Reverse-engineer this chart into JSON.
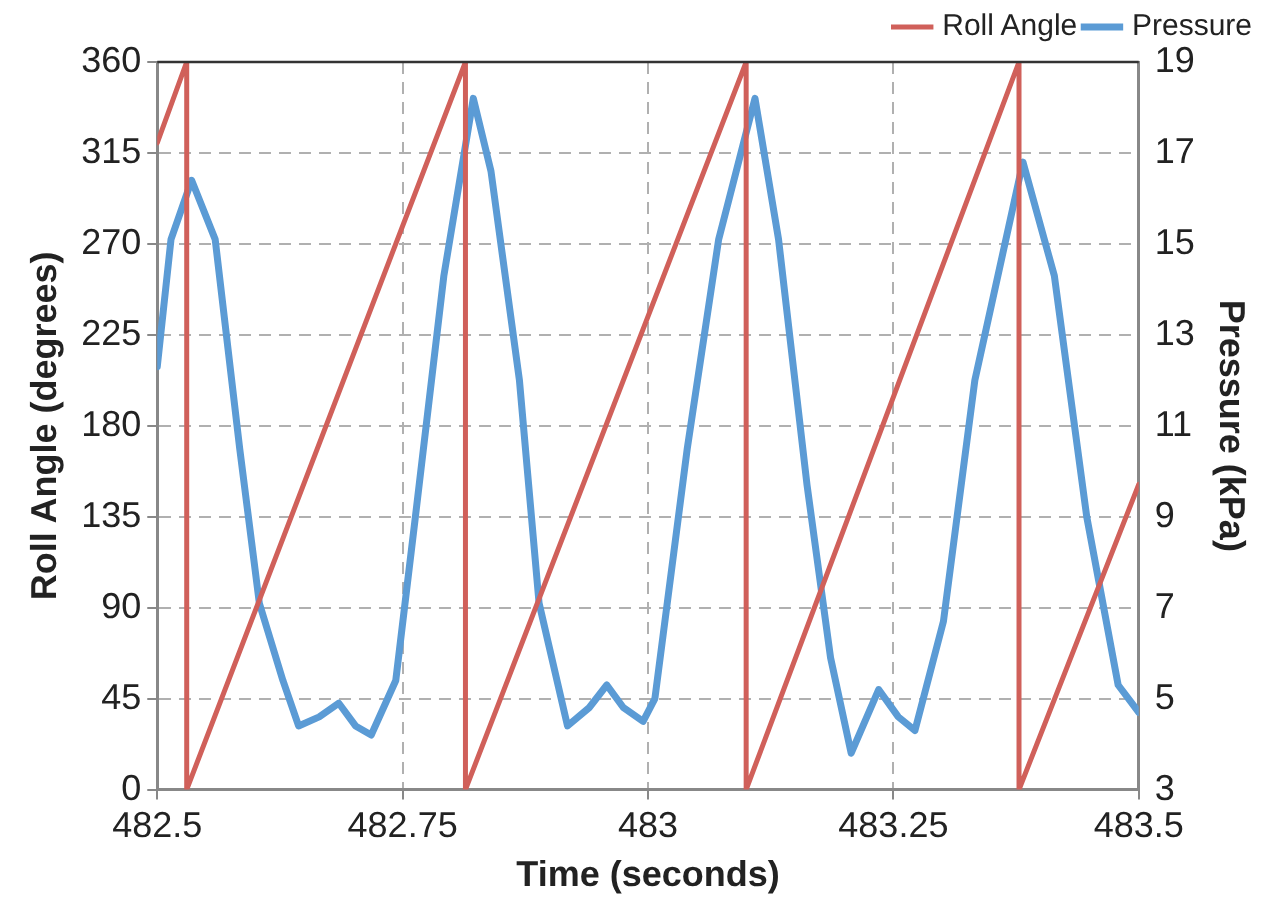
{
  "chart_data": {
    "type": "line",
    "xlabel": "Time (seconds)",
    "ylabel": "Roll Angle (degrees)",
    "y2label": "Pressure (kPa)",
    "xlim": [
      482.5,
      483.5
    ],
    "xticks": [
      482.5,
      482.75,
      483,
      483.25,
      483.5
    ],
    "ylim": [
      0,
      360
    ],
    "yticks": [
      0,
      45,
      90,
      135,
      180,
      225,
      270,
      315,
      360
    ],
    "y2lim": [
      3,
      19
    ],
    "y2ticks": [
      3,
      5,
      7,
      9,
      11,
      13,
      15,
      17,
      19
    ],
    "grid": true,
    "legend": "top right",
    "marker": "none",
    "line_style": "solid",
    "series": [
      {
        "name": "Roll Angle",
        "color": "#d0605a",
        "x": [
          482.5,
          482.53,
          482.53,
          482.814,
          482.814,
          483.1,
          483.1,
          483.378,
          483.378,
          483.5
        ],
        "values": [
          320,
          360,
          0,
          360,
          0,
          360,
          0,
          360,
          0,
          151
        ]
      },
      {
        "name": "Pressure",
        "color": "#5b9bd5",
        "axis": "y2",
        "x": [
          482.5,
          482.514,
          482.535,
          482.559,
          482.584,
          482.604,
          482.628,
          482.644,
          482.665,
          482.685,
          482.702,
          482.718,
          482.743,
          482.763,
          482.792,
          482.822,
          482.84,
          482.869,
          482.889,
          482.918,
          482.94,
          482.958,
          482.975,
          482.995,
          483.007,
          483.04,
          483.072,
          483.109,
          483.133,
          483.162,
          483.186,
          483.207,
          483.235,
          483.255,
          483.272,
          483.301,
          483.333,
          483.382,
          483.414,
          483.447,
          483.479,
          483.5
        ],
        "values": [
          12.3,
          15.1,
          16.4,
          15.1,
          10.5,
          7.1,
          5.4,
          4.4,
          4.6,
          4.9,
          4.4,
          4.2,
          5.4,
          9.0,
          14.3,
          18.2,
          16.6,
          12.0,
          7.1,
          4.4,
          4.8,
          5.3,
          4.8,
          4.5,
          5.0,
          10.5,
          15.1,
          18.2,
          15.1,
          9.7,
          5.9,
          3.8,
          5.2,
          4.6,
          4.3,
          6.7,
          12.0,
          16.8,
          14.3,
          9.0,
          5.3,
          4.7
        ]
      }
    ]
  }
}
